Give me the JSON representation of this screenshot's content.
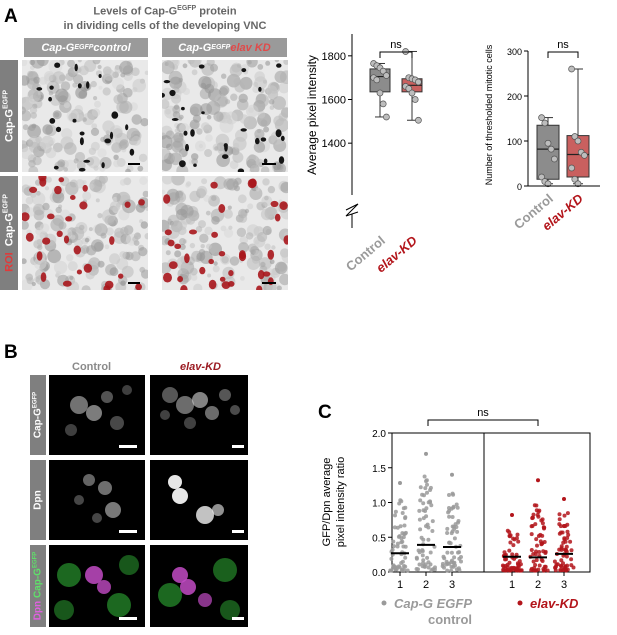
{
  "panelA": {
    "label": "A",
    "title_line1_pre": "Levels of Cap-G",
    "title_line1_sup": "EGFP",
    "title_line1_post": " protein",
    "title_line2": "in dividing cells of the developing VNC",
    "col1_pre": "Cap-G",
    "col1_sup": "EGFP",
    "col1_post": "control",
    "col2_pre": "Cap-G",
    "col2_sup": "EGFP",
    "col2_post": "elav KD",
    "row1_pre": "Cap-G",
    "row1_sup": "EGFP",
    "row2_roi": "ROI",
    "row2_pre": "Cap-G",
    "row2_sup": "EGFP"
  },
  "panelB": {
    "label": "B",
    "col1": "Control",
    "col2": "elav-KD",
    "row1_pre": "Cap-G",
    "row1_sup": "EGFP",
    "row2": "Dpn",
    "row3_dpn": "Dpn",
    "row3_cap_pre": "Cap-G",
    "row3_cap_sup": "EGFP"
  },
  "panelC": {
    "label": "C"
  },
  "colors": {
    "control": "#9a9a9a",
    "elav": "#b3151b",
    "box_control": "#8c8c8c",
    "box_elav": "#c9605f",
    "green": "#3ecf4a",
    "magenta": "#d04ed0"
  },
  "chart_data": [
    {
      "type": "box",
      "id": "avg-pixel-intensity",
      "ylabel": "Average pixel intensity",
      "yticks": [
        1400,
        1600,
        1800
      ],
      "ylim": [
        1300,
        1900
      ],
      "axis_break": true,
      "significance": "ns",
      "categories": [
        "Control",
        "elav-KD"
      ],
      "series": [
        {
          "name": "Control",
          "min": 1520,
          "q1": 1635,
          "median": 1705,
          "q3": 1740,
          "max": 1765,
          "points": [
            1765,
            1755,
            1745,
            1730,
            1710,
            1700,
            1690,
            1630,
            1580,
            1520
          ]
        },
        {
          "name": "elav-KD",
          "min": 1505,
          "q1": 1635,
          "median": 1665,
          "q3": 1695,
          "max": 1820,
          "points": [
            1820,
            1700,
            1695,
            1690,
            1680,
            1660,
            1650,
            1630,
            1600,
            1505
          ]
        }
      ]
    },
    {
      "type": "box",
      "id": "thresholded-mitotic-cells",
      "ylabel": "Number of thresholded mitotic cells",
      "yticks": [
        0,
        100,
        200,
        300
      ],
      "ylim": [
        0,
        300
      ],
      "significance": "ns",
      "categories": [
        "Control",
        "elav-KD"
      ],
      "series": [
        {
          "name": "Control",
          "min": 5,
          "q1": 15,
          "median": 82,
          "q3": 135,
          "max": 152,
          "points": [
            152,
            140,
            95,
            82,
            60,
            20,
            10,
            5
          ]
        },
        {
          "name": "elav-KD",
          "min": 5,
          "q1": 20,
          "median": 70,
          "q3": 112,
          "max": 260,
          "points": [
            260,
            110,
            100,
            75,
            68,
            40,
            15,
            5
          ]
        }
      ]
    },
    {
      "type": "scatter",
      "id": "gfp-dpn-ratio",
      "ylabel_line1": "GFP/Dpn average",
      "ylabel_line2": "pixel intensity ratio",
      "yticks": [
        "0.0",
        "0.5",
        "1.0",
        "1.5",
        "2.0"
      ],
      "ylim": [
        0,
        2.0
      ],
      "significance": "ns",
      "categories": [
        "1",
        "2",
        "3",
        "1",
        "2",
        "3"
      ],
      "group_labels": [
        {
          "name": "Cap-G EGFP",
          "sub": "control"
        },
        {
          "name": "elav-KD"
        }
      ],
      "medians": [
        0.27,
        0.39,
        0.36,
        0.22,
        0.21,
        0.26
      ],
      "max": [
        1.28,
        1.7,
        1.4,
        0.82,
        1.32,
        1.05
      ]
    }
  ]
}
